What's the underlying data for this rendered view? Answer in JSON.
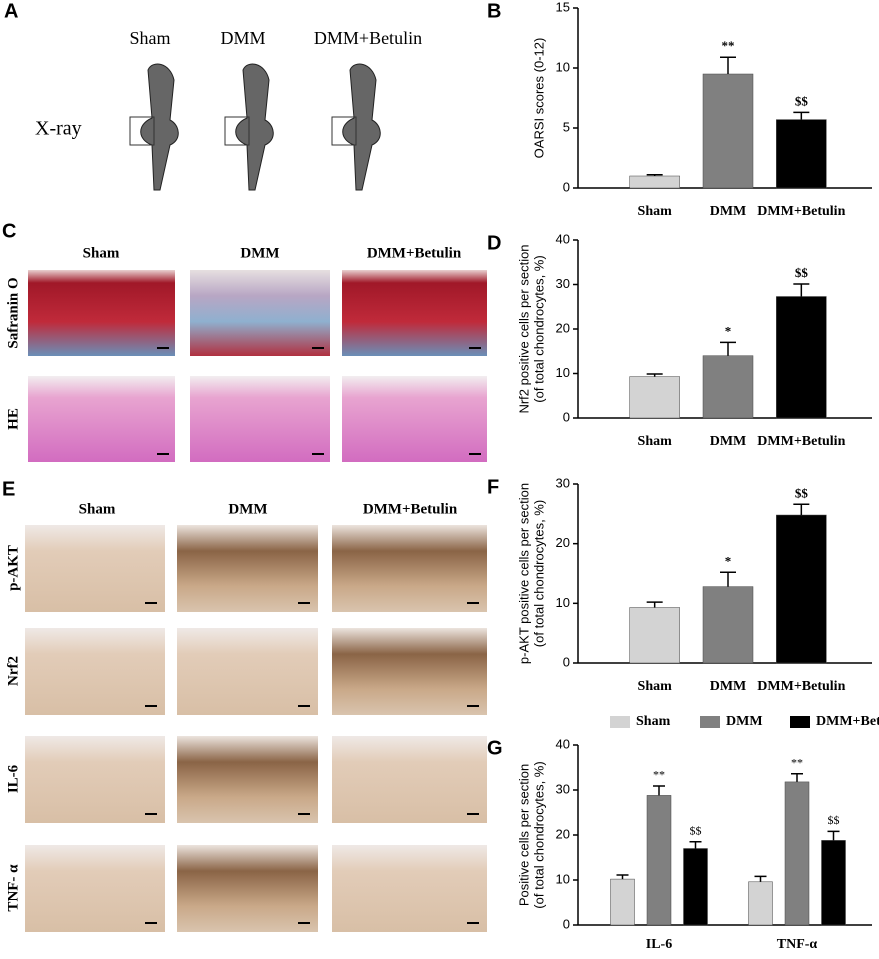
{
  "figure": {
    "A": {
      "label": "A",
      "columns": [
        "Sham",
        "DMM",
        "DMM+Betulin"
      ],
      "row": "X-ray"
    },
    "C": {
      "label": "C",
      "columns": [
        "Sham",
        "DMM",
        "DMM+Betulin"
      ],
      "rows": [
        "Safranin O",
        "HE"
      ]
    },
    "E": {
      "label": "E",
      "columns": [
        "Sham",
        "DMM",
        "DMM+Betulin"
      ],
      "rows": [
        "p-AKT",
        "Nrf2",
        "IL-6",
        "TNF- α"
      ]
    }
  },
  "chart_data": [
    {
      "type": "bar",
      "panel": "B",
      "ylabel": [
        "OARSI scores (0-12)"
      ],
      "categories": [
        "Sham",
        "DMM",
        "DMM+Betulin"
      ],
      "values": [
        1.0,
        9.5,
        5.7
      ],
      "errors": [
        0.1,
        1.4,
        0.6
      ],
      "colors": [
        "#d3d3d3",
        "#808080",
        "#000000"
      ],
      "annotations": [
        {
          "index": 1,
          "text": "**"
        },
        {
          "index": 2,
          "text": "$$"
        }
      ],
      "ylim": [
        0,
        15
      ],
      "yticks": [
        0,
        5,
        10,
        15
      ]
    },
    {
      "type": "bar",
      "panel": "D",
      "ylabel": [
        "Nrf2 positive cells per section",
        "(of total chondrocytes, %)"
      ],
      "categories": [
        "Sham",
        "DMM",
        "DMM+Betulin"
      ],
      "values": [
        9.3,
        14.0,
        27.3
      ],
      "errors": [
        0.6,
        3.0,
        2.8
      ],
      "colors": [
        "#d3d3d3",
        "#808080",
        "#000000"
      ],
      "annotations": [
        {
          "index": 1,
          "text": "*"
        },
        {
          "index": 2,
          "text": "$$"
        }
      ],
      "ylim": [
        0,
        40
      ],
      "yticks": [
        0,
        10,
        20,
        30,
        40
      ]
    },
    {
      "type": "bar",
      "panel": "F",
      "ylabel": [
        "p-AKT positive cells per section",
        "(of total chondrocytes, %)"
      ],
      "categories": [
        "Sham",
        "DMM",
        "DMM+Betulin"
      ],
      "values": [
        9.3,
        12.8,
        24.8
      ],
      "errors": [
        0.9,
        2.4,
        1.8
      ],
      "colors": [
        "#d3d3d3",
        "#808080",
        "#000000"
      ],
      "annotations": [
        {
          "index": 1,
          "text": "*"
        },
        {
          "index": 2,
          "text": "$$"
        }
      ],
      "ylim": [
        0,
        30
      ],
      "yticks": [
        0,
        10,
        20,
        30
      ]
    },
    {
      "type": "grouped_bar",
      "panel": "G",
      "ylabel": [
        "Positive cells per section",
        "(of total chondrocytes, %)"
      ],
      "categories": [
        "IL-6",
        "TNF-α"
      ],
      "series": [
        {
          "name": "Sham",
          "color": "#d3d3d3",
          "values": [
            10.2,
            9.6
          ],
          "errors": [
            0.9,
            1.2
          ]
        },
        {
          "name": "DMM",
          "color": "#808080",
          "values": [
            28.8,
            31.8
          ],
          "errors": [
            2.1,
            1.8
          ],
          "annotations": [
            {
              "index": 0,
              "text": "**"
            },
            {
              "index": 1,
              "text": "**"
            }
          ]
        },
        {
          "name": "DMM+Betulin",
          "color": "#000000",
          "values": [
            17.0,
            18.8
          ],
          "errors": [
            1.5,
            2.0
          ],
          "annotations": [
            {
              "index": 0,
              "text": "$$"
            },
            {
              "index": 1,
              "text": "$$"
            }
          ]
        }
      ],
      "ylim": [
        0,
        40
      ],
      "yticks": [
        0,
        10,
        20,
        30,
        40
      ]
    }
  ]
}
